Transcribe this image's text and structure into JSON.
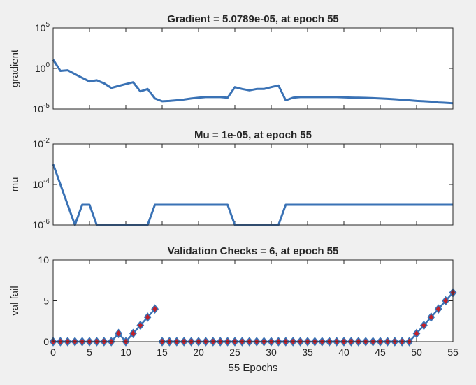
{
  "colors": {
    "background": "#f0f0f0",
    "axes_bg": "#ffffff",
    "axis": "#262626",
    "line": "#3a72b5",
    "marker_edge": "#3a72b5",
    "marker_fill": "#c0202a"
  },
  "chart_data": [
    {
      "type": "line",
      "title": "Gradient = 5.0789e-05, at epoch 55",
      "ylabel": "gradient",
      "xlabel": "",
      "yscale": "log",
      "xlim": [
        0,
        55
      ],
      "ylim": [
        1e-05,
        100000
      ],
      "yticks": [
        1e-05,
        1,
        100000
      ],
      "ytick_labels": [
        {
          "base": "10",
          "exp": "-5"
        },
        {
          "base": "10",
          "exp": "0"
        },
        {
          "base": "10",
          "exp": "5"
        }
      ],
      "x": [
        0,
        1,
        2,
        3,
        4,
        5,
        6,
        7,
        8,
        9,
        10,
        11,
        12,
        13,
        14,
        15,
        16,
        17,
        18,
        19,
        20,
        21,
        22,
        23,
        24,
        25,
        26,
        27,
        28,
        29,
        30,
        31,
        32,
        33,
        34,
        35,
        36,
        37,
        38,
        39,
        40,
        41,
        42,
        43,
        44,
        45,
        46,
        47,
        48,
        49,
        50,
        51,
        52,
        53,
        54,
        55
      ],
      "series": [
        {
          "values": [
            12,
            0.5,
            0.6,
            0.2,
            0.07,
            0.025,
            0.035,
            0.015,
            0.004,
            0.007,
            0.012,
            0.02,
            0.0015,
            0.003,
            0.0002,
            9e-05,
            0.0001,
            0.00012,
            0.00015,
            0.0002,
            0.00025,
            0.0003,
            0.0003,
            0.0003,
            0.00025,
            0.005,
            0.003,
            0.002,
            0.003,
            0.003,
            0.005,
            0.008,
            0.00012,
            0.00025,
            0.0003,
            0.0003,
            0.0003,
            0.0003,
            0.0003,
            0.0003,
            0.00028,
            0.00026,
            0.00025,
            0.00024,
            0.00022,
            0.0002,
            0.00018,
            0.00016,
            0.00014,
            0.00012,
            0.0001,
            9e-05,
            8e-05,
            6.5e-05,
            5.8e-05,
            5.0789e-05
          ]
        }
      ],
      "xticks": [
        0,
        5,
        10,
        15,
        20,
        25,
        30,
        35,
        40,
        45,
        50,
        55
      ],
      "show_xtick_labels": false,
      "grid": false,
      "legend": "none"
    },
    {
      "type": "line",
      "title": "Mu = 1e-05, at epoch 55",
      "ylabel": "mu",
      "xlabel": "",
      "yscale": "log",
      "xlim": [
        0,
        55
      ],
      "ylim": [
        1e-06,
        0.01
      ],
      "yticks": [
        1e-06,
        0.0001,
        0.01
      ],
      "ytick_labels": [
        {
          "base": "10",
          "exp": "-6"
        },
        {
          "base": "10",
          "exp": "-4"
        },
        {
          "base": "10",
          "exp": "-2"
        }
      ],
      "x": [
        0,
        1,
        2,
        3,
        4,
        5,
        6,
        7,
        8,
        9,
        10,
        11,
        12,
        13,
        14,
        15,
        16,
        17,
        18,
        19,
        20,
        21,
        22,
        23,
        24,
        25,
        26,
        27,
        28,
        29,
        30,
        31,
        32,
        33,
        34,
        35,
        36,
        37,
        38,
        39,
        40,
        41,
        42,
        43,
        44,
        45,
        46,
        47,
        48,
        49,
        50,
        51,
        52,
        53,
        54,
        55
      ],
      "series": [
        {
          "values": [
            0.001,
            0.0001,
            1e-05,
            1e-06,
            1e-05,
            1e-05,
            1e-06,
            1e-06,
            1e-06,
            1e-06,
            1e-06,
            1e-06,
            1e-06,
            1e-06,
            1e-05,
            1e-05,
            1e-05,
            1e-05,
            1e-05,
            1e-05,
            1e-05,
            1e-05,
            1e-05,
            1e-05,
            1e-05,
            1e-06,
            1e-06,
            1e-06,
            1e-06,
            1e-06,
            1e-06,
            1e-06,
            1e-05,
            1e-05,
            1e-05,
            1e-05,
            1e-05,
            1e-05,
            1e-05,
            1e-05,
            1e-05,
            1e-05,
            1e-05,
            1e-05,
            1e-05,
            1e-05,
            1e-05,
            1e-05,
            1e-05,
            1e-05,
            1e-05,
            1e-05,
            1e-05,
            1e-05,
            1e-05,
            1e-05
          ]
        }
      ],
      "xticks": [
        0,
        5,
        10,
        15,
        20,
        25,
        30,
        35,
        40,
        45,
        50,
        55
      ],
      "show_xtick_labels": false,
      "grid": false,
      "legend": "none"
    },
    {
      "type": "scatter",
      "title": "Validation Checks = 6, at epoch 55",
      "ylabel": "val fail",
      "xlabel": "55 Epochs",
      "yscale": "linear",
      "xlim": [
        0,
        55
      ],
      "ylim": [
        0,
        10
      ],
      "yticks": [
        0,
        5,
        10
      ],
      "ytick_labels": [
        "0",
        "5",
        "10"
      ],
      "x": [
        0,
        1,
        2,
        3,
        4,
        5,
        6,
        7,
        8,
        9,
        10,
        11,
        12,
        13,
        14,
        15,
        16,
        17,
        18,
        19,
        20,
        21,
        22,
        23,
        24,
        25,
        26,
        27,
        28,
        29,
        30,
        31,
        32,
        33,
        34,
        35,
        36,
        37,
        38,
        39,
        40,
        41,
        42,
        43,
        44,
        45,
        46,
        47,
        48,
        49,
        50,
        51,
        52,
        53,
        54,
        55
      ],
      "series": [
        {
          "values": [
            0,
            0,
            0,
            0,
            0,
            0,
            0,
            0,
            0,
            1,
            0,
            1,
            2,
            3,
            4,
            0,
            0,
            0,
            0,
            0,
            0,
            0,
            0,
            0,
            0,
            0,
            0,
            0,
            0,
            0,
            0,
            0,
            0,
            0,
            0,
            0,
            0,
            0,
            0,
            0,
            0,
            0,
            0,
            0,
            0,
            0,
            0,
            0,
            0,
            0,
            1,
            2,
            3,
            4,
            5,
            6
          ],
          "breaks_after": [
            14
          ]
        }
      ],
      "xticks": [
        0,
        5,
        10,
        15,
        20,
        25,
        30,
        35,
        40,
        45,
        50,
        55
      ],
      "xtick_labels": [
        "0",
        "5",
        "10",
        "15",
        "20",
        "25",
        "30",
        "35",
        "40",
        "45",
        "50",
        "55"
      ],
      "show_xtick_labels": true,
      "grid": false,
      "legend": "none"
    }
  ]
}
